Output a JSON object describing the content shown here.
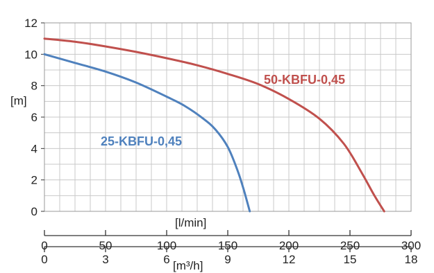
{
  "chart_data": {
    "type": "line",
    "ylabel": "[m]",
    "ylim": [
      0,
      12
    ],
    "yticks": [
      0,
      2,
      4,
      6,
      8,
      10,
      12
    ],
    "x_axes": [
      {
        "label": "[l/min]",
        "ticks": [
          0,
          50,
          100,
          150,
          200,
          250,
          300
        ],
        "range": [
          0,
          300
        ]
      },
      {
        "label": "[m³/h]",
        "ticks": [
          0,
          3,
          6,
          9,
          12,
          15,
          18
        ],
        "range": [
          0,
          18
        ]
      }
    ],
    "grid": true,
    "series": [
      {
        "name": "50-KBFU-0,45",
        "color": "#c0504d",
        "points": [
          [
            0,
            11.0
          ],
          [
            25,
            10.8
          ],
          [
            50,
            10.5
          ],
          [
            75,
            10.15
          ],
          [
            100,
            9.75
          ],
          [
            125,
            9.3
          ],
          [
            150,
            8.75
          ],
          [
            175,
            8.1
          ],
          [
            200,
            7.15
          ],
          [
            225,
            5.9
          ],
          [
            245,
            4.3
          ],
          [
            260,
            2.4
          ],
          [
            270,
            1.0
          ],
          [
            278,
            0
          ]
        ]
      },
      {
        "name": "25-KBFU-0,45",
        "color": "#4f81bd",
        "points": [
          [
            0,
            10.0
          ],
          [
            25,
            9.45
          ],
          [
            50,
            8.9
          ],
          [
            75,
            8.2
          ],
          [
            100,
            7.3
          ],
          [
            115,
            6.7
          ],
          [
            130,
            5.9
          ],
          [
            140,
            5.2
          ],
          [
            150,
            4.1
          ],
          [
            158,
            2.6
          ],
          [
            163,
            1.4
          ],
          [
            168,
            0
          ]
        ]
      }
    ]
  }
}
